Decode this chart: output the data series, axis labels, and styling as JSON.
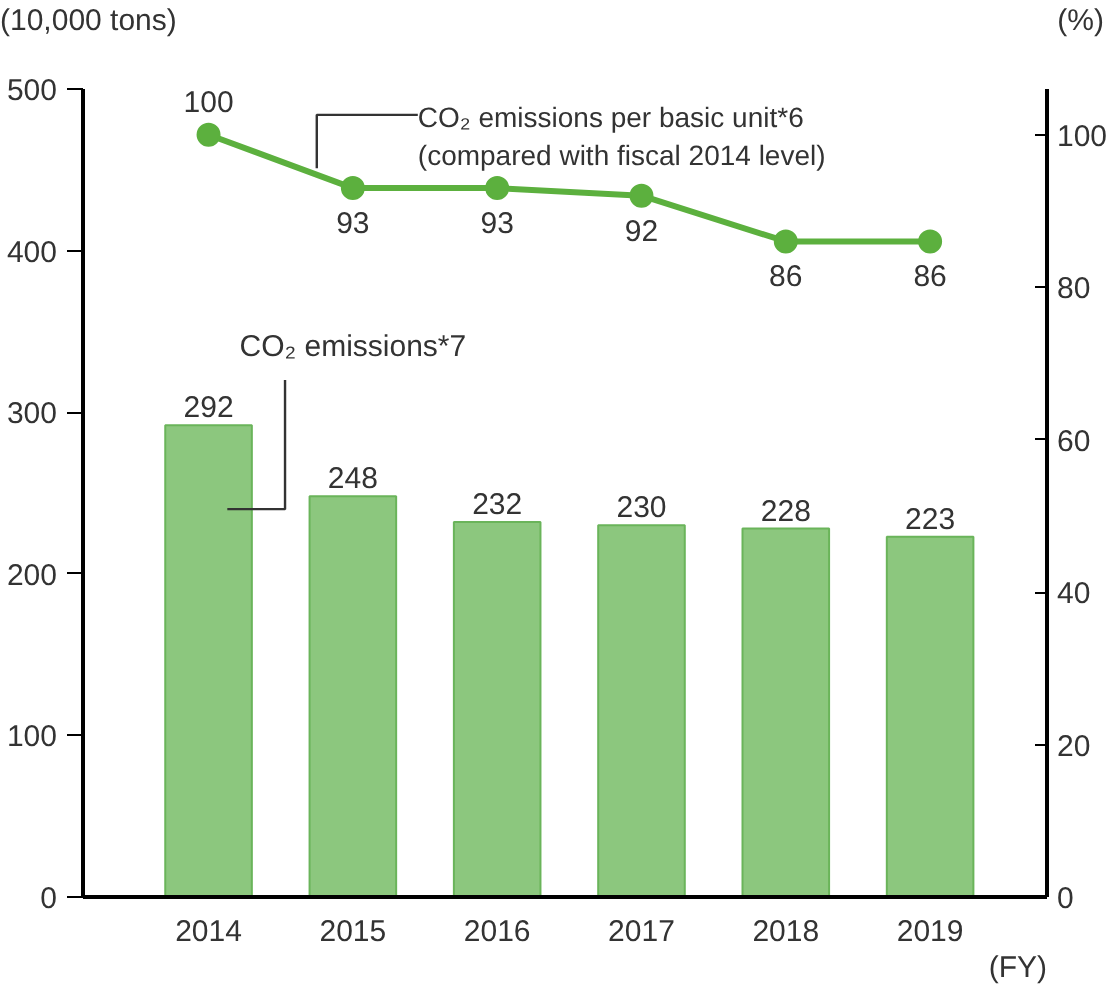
{
  "chart_data": {
    "type": "bar",
    "categories": [
      "2014",
      "2015",
      "2016",
      "2017",
      "2018",
      "2019"
    ],
    "xlabel": "(FY)",
    "ylabel": "(10,000 tons)",
    "y2label": "(%)",
    "series": [
      {
        "name": "CO₂ emissions*7",
        "color": "#8cc77e",
        "values": [
          292,
          248,
          232,
          230,
          228,
          223
        ]
      },
      {
        "name": "CO₂ emissions per basic unit*6\n(compared with fiscal 2014 level)",
        "type": "line",
        "axis": "y2",
        "color": "#5cb03e",
        "marker": "circle",
        "values": [
          100,
          93,
          93,
          92,
          86,
          86
        ]
      }
    ],
    "ylim": [
      0,
      500
    ],
    "yticks": [
      0,
      100,
      200,
      300,
      400,
      500
    ],
    "y2lim": [
      0,
      106
    ],
    "y2ticks": [
      0,
      20,
      40,
      60,
      80,
      100
    ],
    "data_labels": true,
    "grid": false
  }
}
